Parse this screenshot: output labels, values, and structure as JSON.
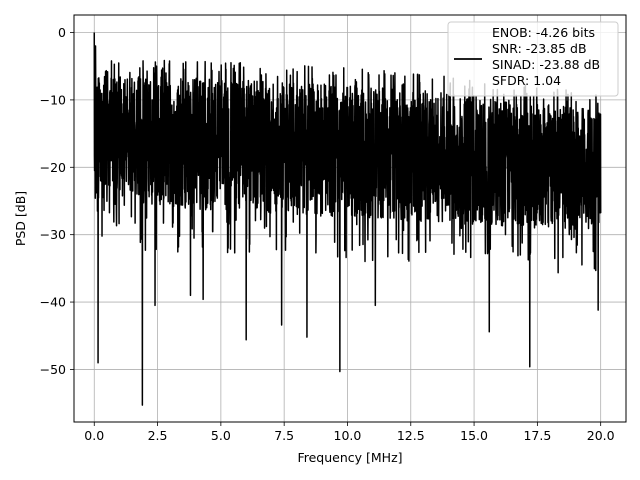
{
  "chart_data": {
    "type": "line",
    "xlabel": "Frequency [MHz]",
    "ylabel": "PSD [dB]",
    "xlim": [
      -0.8,
      21.0
    ],
    "ylim": [
      -57.8,
      2.6
    ],
    "grid": true,
    "legend_placement": "top-right",
    "xticks": [
      0.0,
      2.5,
      5.0,
      7.5,
      10.0,
      12.5,
      15.0,
      17.5,
      20.0
    ],
    "xtick_labels": [
      "0.0",
      "2.5",
      "5.0",
      "7.5",
      "10.0",
      "12.5",
      "15.0",
      "17.5",
      "20.0"
    ],
    "yticks": [
      0,
      -10,
      -20,
      -30,
      -40,
      -50
    ],
    "ytick_labels": [
      "0",
      "−10",
      "−20",
      "−30",
      "−40",
      "−50"
    ],
    "series": [
      {
        "color": "#000000",
        "legend_lines": [
          "ENOB: -4.26 bits",
          "SNR: -23.85 dB",
          "SINAD: -23.88 dB",
          "SFDR: 1.04"
        ],
        "x_range": [
          0.0,
          20.0
        ],
        "envelope_top": [
          -6,
          -11
        ],
        "envelope_bottom": [
          -26,
          -30
        ],
        "peaks": [
          {
            "x": 0.0,
            "y": 0.0
          },
          {
            "x": 0.05,
            "y": -2.0
          },
          {
            "x": 0.15,
            "y": -49.0
          },
          {
            "x": 1.9,
            "y": -55.3
          },
          {
            "x": 2.4,
            "y": -40.5
          },
          {
            "x": 3.8,
            "y": -39.0
          },
          {
            "x": 4.3,
            "y": -39.6
          },
          {
            "x": 6.0,
            "y": -45.6
          },
          {
            "x": 7.4,
            "y": -43.4
          },
          {
            "x": 8.4,
            "y": -45.2
          },
          {
            "x": 9.7,
            "y": -50.3
          },
          {
            "x": 11.1,
            "y": -40.5
          },
          {
            "x": 15.6,
            "y": -44.4
          },
          {
            "x": 17.2,
            "y": -49.6
          },
          {
            "x": 19.9,
            "y": -41.2
          }
        ]
      }
    ]
  }
}
